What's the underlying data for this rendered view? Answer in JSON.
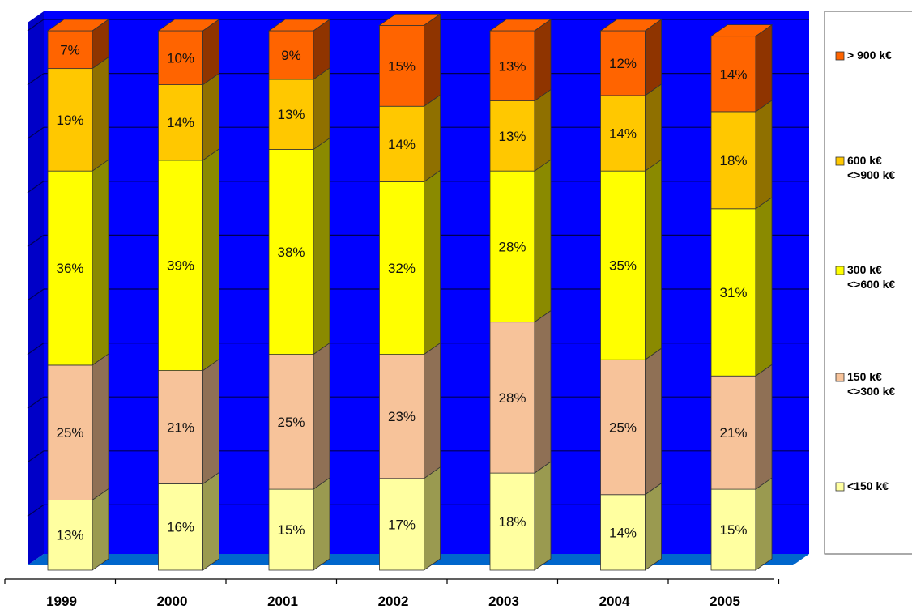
{
  "chart_data": {
    "type": "bar",
    "stacked": true,
    "percent": true,
    "categories": [
      "1999",
      "2000",
      "2001",
      "2002",
      "2003",
      "2004",
      "2005"
    ],
    "ylim": [
      0,
      100
    ],
    "grid": true,
    "legend_position": "right",
    "series": [
      {
        "name": "<150 k€",
        "values": [
          13,
          16,
          15,
          17,
          18,
          14,
          15
        ],
        "labels": [
          "13%",
          "16%",
          "15%",
          "17%",
          "18%",
          "14%",
          "15%"
        ],
        "color": "#ffffa0",
        "side": "#9a9a50"
      },
      {
        "name": "150 k€ <>300 k€",
        "values": [
          25,
          21,
          25,
          23,
          28,
          25,
          21
        ],
        "labels": [
          "25%",
          "21%",
          "25%",
          "23%",
          "28%",
          "25%",
          "21%"
        ],
        "color": "#f7c39a",
        "side": "#8f7055"
      },
      {
        "name": "300 k€ <>600 k€",
        "values": [
          36,
          39,
          38,
          32,
          28,
          35,
          31
        ],
        "labels": [
          "36%",
          "39%",
          "38%",
          "32%",
          "28%",
          "35%",
          "31%"
        ],
        "color": "#ffff00",
        "side": "#8a8a00"
      },
      {
        "name": "600 k€ <>900 k€",
        "values": [
          19,
          14,
          13,
          14,
          13,
          14,
          18
        ],
        "labels": [
          "19%",
          "14%",
          "13%",
          "14%",
          "13%",
          "14%",
          "18%"
        ],
        "color": "#ffc800",
        "side": "#8f7000"
      },
      {
        "name": "> 900 k€",
        "values": [
          7,
          10,
          9,
          15,
          13,
          12,
          14
        ],
        "labels": [
          "7%",
          "10%",
          "9%",
          "15%",
          "13%",
          "12%",
          "14%"
        ],
        "color": "#ff6400",
        "side": "#8f3400"
      }
    ],
    "legend": [
      {
        "key": "s5",
        "lines": [
          "> 900 k€"
        ],
        "color": "#ff6400"
      },
      {
        "key": "s4",
        "lines": [
          "600 k€",
          "<>900 k€"
        ],
        "color": "#ffc800"
      },
      {
        "key": "s3",
        "lines": [
          "300 k€",
          "<>600 k€"
        ],
        "color": "#ffff00"
      },
      {
        "key": "s2",
        "lines": [
          "150 k€",
          "<>300 k€"
        ],
        "color": "#f7c39a"
      },
      {
        "key": "s1",
        "lines": [
          "<150 k€"
        ],
        "color": "#ffffa0"
      }
    ],
    "colors": {
      "wall": "#0000ff",
      "side_wall": "#0000c8",
      "floor": "#0066cc",
      "gridline": "#000055"
    }
  }
}
